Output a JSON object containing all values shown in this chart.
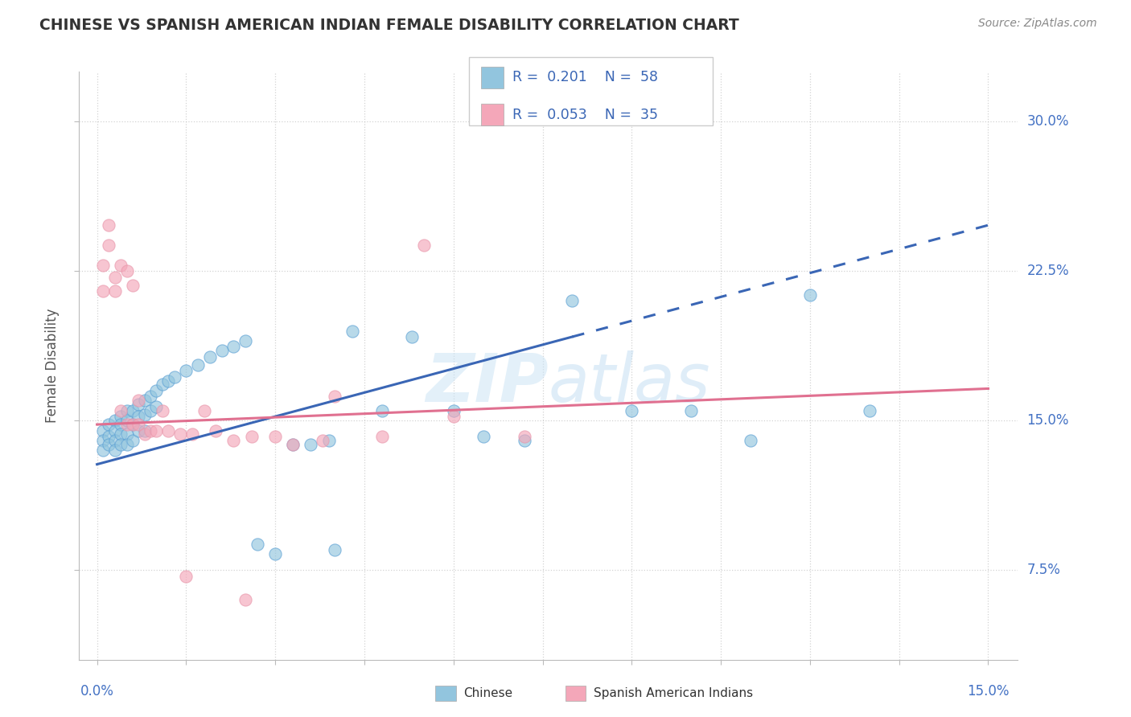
{
  "title": "CHINESE VS SPANISH AMERICAN INDIAN FEMALE DISABILITY CORRELATION CHART",
  "source": "Source: ZipAtlas.com",
  "ylabel": "Female Disability",
  "watermark": "ZIPatlas",
  "blue_color": "#92c5de",
  "pink_color": "#f4a7b9",
  "line_blue": "#3a66b5",
  "line_pink": "#e07090",
  "blue_color_dark": "#5a9fd4",
  "pink_color_dark": "#e896aa",
  "ylim": [
    0.03,
    0.325
  ],
  "xlim": [
    -0.003,
    0.155
  ],
  "ytick_vals": [
    0.075,
    0.15,
    0.225,
    0.3
  ],
  "ytick_labels": [
    "7.5%",
    "15.0%",
    "22.5%",
    "30.0%"
  ],
  "chinese_x": [
    0.001,
    0.001,
    0.001,
    0.002,
    0.002,
    0.002,
    0.003,
    0.003,
    0.003,
    0.003,
    0.004,
    0.004,
    0.004,
    0.004,
    0.005,
    0.005,
    0.005,
    0.005,
    0.006,
    0.006,
    0.006,
    0.007,
    0.007,
    0.007,
    0.008,
    0.008,
    0.008,
    0.009,
    0.009,
    0.01,
    0.01,
    0.011,
    0.012,
    0.013,
    0.015,
    0.017,
    0.019,
    0.021,
    0.023,
    0.025,
    0.027,
    0.03,
    0.033,
    0.036,
    0.039,
    0.043,
    0.048,
    0.053,
    0.06,
    0.065,
    0.072,
    0.08,
    0.09,
    0.1,
    0.11,
    0.12,
    0.13,
    0.04
  ],
  "chinese_y": [
    0.145,
    0.14,
    0.135,
    0.148,
    0.142,
    0.138,
    0.15,
    0.145,
    0.14,
    0.135,
    0.152,
    0.148,
    0.143,
    0.138,
    0.155,
    0.15,
    0.143,
    0.138,
    0.155,
    0.148,
    0.14,
    0.158,
    0.152,
    0.145,
    0.16,
    0.153,
    0.145,
    0.162,
    0.155,
    0.165,
    0.157,
    0.168,
    0.17,
    0.172,
    0.175,
    0.178,
    0.182,
    0.185,
    0.187,
    0.19,
    0.088,
    0.083,
    0.138,
    0.138,
    0.14,
    0.195,
    0.155,
    0.192,
    0.155,
    0.142,
    0.14,
    0.21,
    0.155,
    0.155,
    0.14,
    0.213,
    0.155,
    0.085
  ],
  "spanish_x": [
    0.001,
    0.001,
    0.002,
    0.002,
    0.003,
    0.003,
    0.004,
    0.004,
    0.005,
    0.005,
    0.006,
    0.006,
    0.007,
    0.007,
    0.008,
    0.009,
    0.01,
    0.011,
    0.012,
    0.014,
    0.016,
    0.018,
    0.02,
    0.023,
    0.026,
    0.03,
    0.038,
    0.048,
    0.06,
    0.072,
    0.055,
    0.04,
    0.025,
    0.033,
    0.015
  ],
  "spanish_y": [
    0.228,
    0.215,
    0.248,
    0.238,
    0.222,
    0.215,
    0.228,
    0.155,
    0.225,
    0.148,
    0.218,
    0.148,
    0.16,
    0.148,
    0.143,
    0.145,
    0.145,
    0.155,
    0.145,
    0.143,
    0.143,
    0.155,
    0.145,
    0.14,
    0.142,
    0.142,
    0.14,
    0.142,
    0.152,
    0.142,
    0.238,
    0.162,
    0.06,
    0.138,
    0.072
  ],
  "blue_line_solid_end": 0.08,
  "blue_line_full_end": 0.15,
  "blue_intercept": 0.128,
  "blue_slope": 0.8,
  "pink_intercept": 0.148,
  "pink_slope": 0.12
}
